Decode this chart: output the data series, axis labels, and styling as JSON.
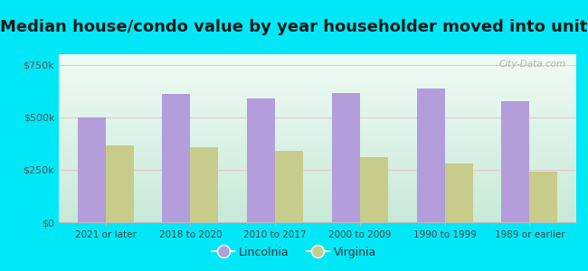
{
  "title": "Median house/condo value by year householder moved into unit",
  "categories": [
    "2021 or later",
    "2018 to 2020",
    "2010 to 2017",
    "2000 to 2009",
    "1990 to 1999",
    "1989 or earlier"
  ],
  "lincolnia_values": [
    500000,
    610000,
    590000,
    615000,
    635000,
    575000
  ],
  "virginia_values": [
    365000,
    355000,
    340000,
    310000,
    278000,
    240000
  ],
  "lincolnia_color": "#b39ddb",
  "virginia_color": "#c8cc8a",
  "background_color": "#00e8f8",
  "plot_bg_top": "#f5fff8",
  "plot_bg_bottom": "#d0f0e0",
  "yticks": [
    0,
    250000,
    500000,
    750000
  ],
  "ytick_labels": [
    "$0",
    "$250k",
    "$500k",
    "$750k"
  ],
  "ylim": [
    0,
    800000
  ],
  "legend_labels": [
    "Lincolnia",
    "Virginia"
  ],
  "title_fontsize": 13,
  "watermark": "City-Data.com"
}
